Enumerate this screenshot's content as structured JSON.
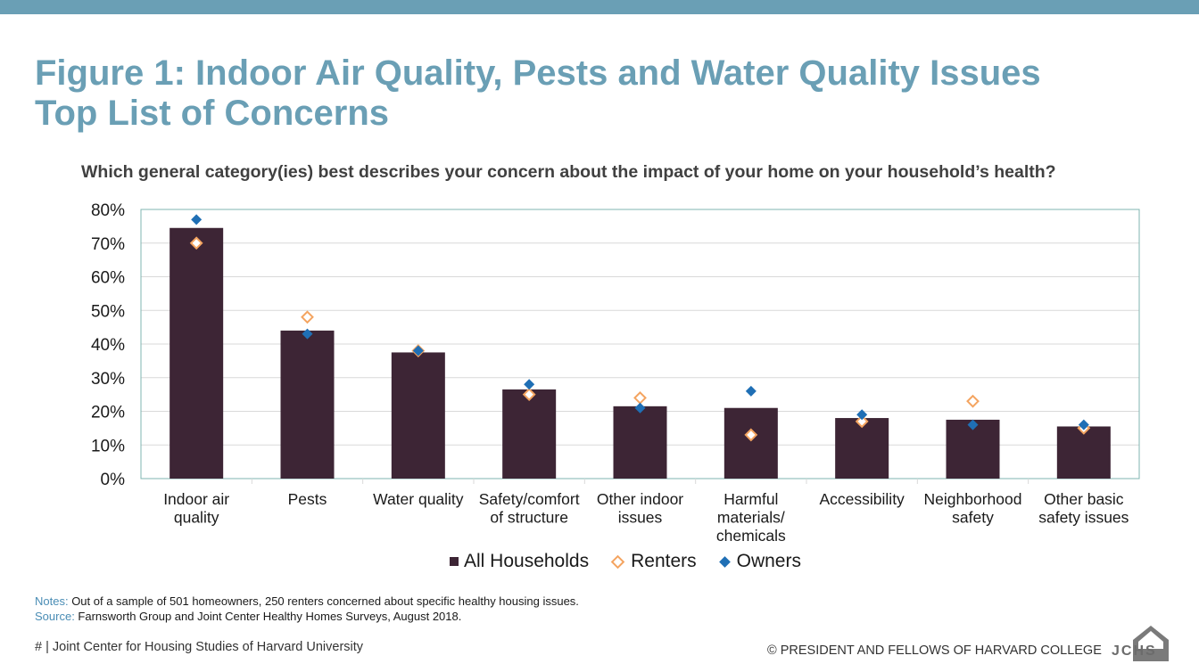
{
  "header": {
    "title_line1": "Figure 1: Indoor Air Quality, Pests and Water Quality Issues",
    "title_line2": "Top List of Concerns"
  },
  "subtitle": "Which general category(ies) best describes your concern about the impact of your home on your household’s health?",
  "chart_data": {
    "type": "bar",
    "title": "Which general category(ies) best describes your concern about the impact of your home on your household’s health?",
    "categories": [
      [
        "Indoor air",
        "quality"
      ],
      [
        "Pests"
      ],
      [
        "Water quality"
      ],
      [
        "Safety/comfort",
        "of structure"
      ],
      [
        "Other indoor",
        "issues"
      ],
      [
        "Harmful",
        "materials/",
        "chemicals"
      ],
      [
        "Accessibility"
      ],
      [
        "Neighborhood",
        "safety"
      ],
      [
        "Other basic",
        "safety issues"
      ]
    ],
    "y_ticks": [
      "0%",
      "10%",
      "20%",
      "30%",
      "40%",
      "50%",
      "60%",
      "70%",
      "80%"
    ],
    "ylim": [
      0,
      80
    ],
    "grid": true,
    "legend_position": "bottom",
    "series": [
      {
        "name": "All Households",
        "type": "bar",
        "color": "#3d2535",
        "values": [
          74.5,
          44,
          37.5,
          26.5,
          21.5,
          21,
          18,
          17.5,
          15.5
        ]
      },
      {
        "name": "Renters",
        "type": "marker",
        "color": "#f4a460",
        "values": [
          70,
          48,
          38,
          25,
          24,
          13,
          17,
          23,
          15
        ]
      },
      {
        "name": "Owners",
        "type": "marker",
        "color": "#1f6fb5",
        "values": [
          77,
          43,
          38,
          28,
          21,
          26,
          19,
          16,
          16
        ]
      }
    ]
  },
  "notes": {
    "notes_label": "Notes:",
    "notes_text": " Out of a sample of 501 homeowners, 250 renters concerned about specific healthy housing issues.",
    "source_label": "Source:",
    "source_text": " Farnsworth Group and Joint Center Healthy Homes Surveys, August 2018."
  },
  "footer": {
    "left": "# | Joint Center for Housing Studies of Harvard University",
    "right": "© PRESIDENT AND FELLOWS OF HARVARD COLLEGE",
    "logo_text": "JCHS"
  }
}
